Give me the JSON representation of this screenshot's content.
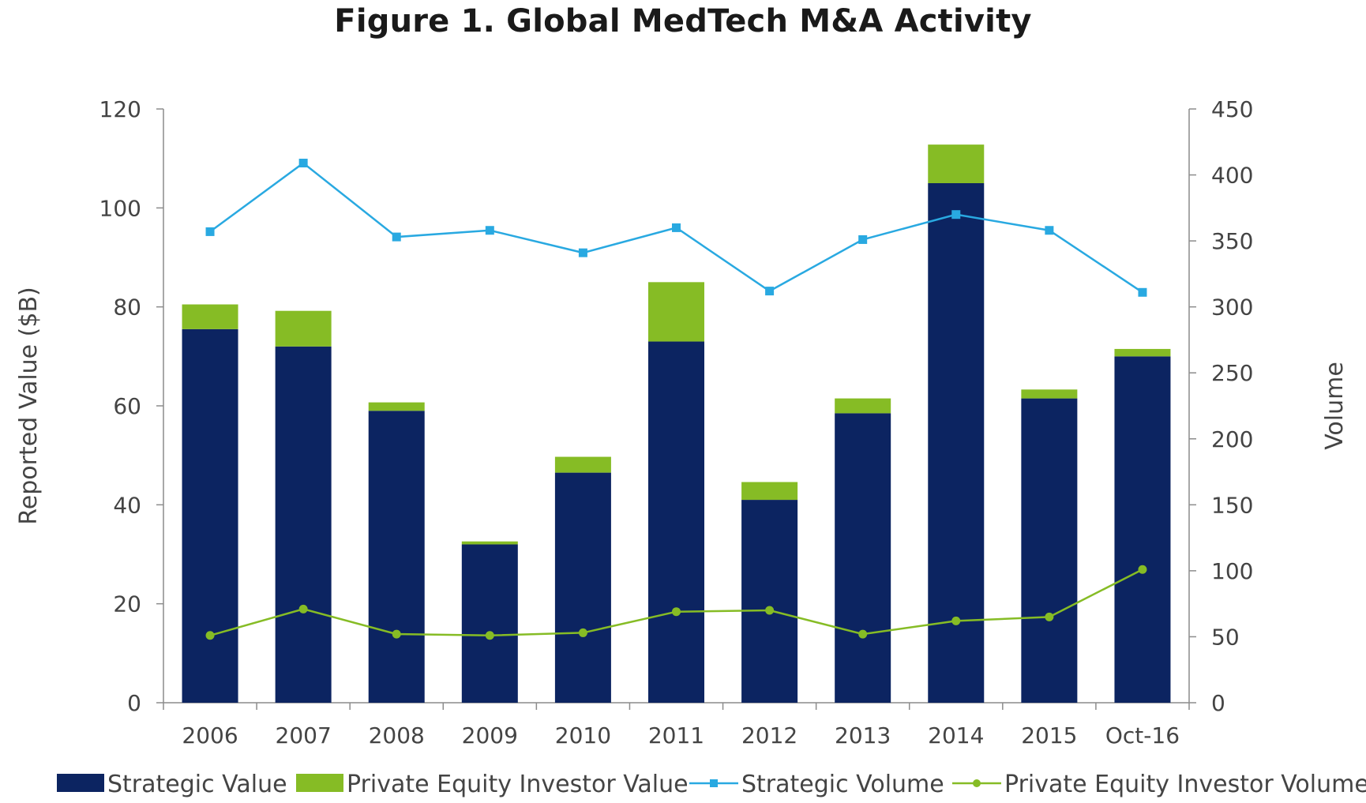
{
  "chart_data": {
    "type": "bar",
    "title": "Figure 1. Global MedTech M&A Activity",
    "categories": [
      "2006",
      "2007",
      "2008",
      "2009",
      "2010",
      "2011",
      "2012",
      "2013",
      "2014",
      "2015",
      "Oct-16"
    ],
    "ylabel": "Reported Value ($B)",
    "y2label": "Volume",
    "ylim": [
      0,
      120
    ],
    "y2lim": [
      0,
      450
    ],
    "yticks": [
      "0",
      "20",
      "40",
      "60",
      "80",
      "100",
      "120"
    ],
    "y2ticks": [
      "0",
      "50",
      "100",
      "150",
      "200",
      "250",
      "300",
      "350",
      "400",
      "450"
    ],
    "series": [
      {
        "name": "Strategic Value",
        "kind": "stacked-bar",
        "axis": "left",
        "color": "#0c2461",
        "values": [
          75.5,
          72,
          59,
          32,
          46.5,
          73,
          41,
          58.5,
          105,
          61.5,
          70
        ]
      },
      {
        "name": "Private Equity Investor Value",
        "kind": "stacked-bar",
        "axis": "left",
        "color": "#86bc25",
        "values": [
          5,
          7.2,
          1.7,
          0.6,
          3.2,
          12,
          3.6,
          3,
          7.8,
          1.8,
          1.5
        ]
      },
      {
        "name": "Strategic Volume",
        "kind": "line",
        "marker": "square",
        "axis": "right",
        "color": "#29a9e1",
        "values": [
          357,
          409,
          353,
          358,
          341,
          360,
          312,
          351,
          370,
          358,
          311
        ]
      },
      {
        "name": "Private Equity Investor Volume",
        "kind": "line",
        "marker": "circle",
        "axis": "right",
        "color": "#86bc25",
        "values": [
          51,
          71,
          52,
          51,
          53,
          69,
          70,
          52,
          62,
          65,
          101
        ]
      }
    ],
    "legend": "bottom"
  }
}
